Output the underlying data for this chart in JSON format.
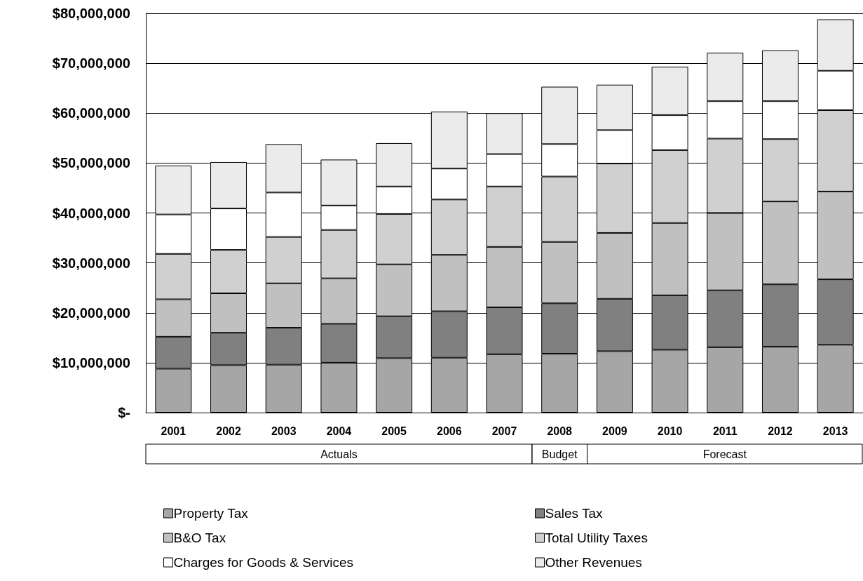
{
  "chart_data": {
    "type": "bar",
    "stacked": true,
    "categories": [
      "2001",
      "2002",
      "2003",
      "2004",
      "2005",
      "2006",
      "2007",
      "2008",
      "2009",
      "2010",
      "2011",
      "2012",
      "2013"
    ],
    "series": [
      {
        "name": "Property Tax",
        "color": "#a6a6a6",
        "values": [
          8800000,
          9500000,
          9600000,
          10000000,
          10900000,
          11000000,
          11700000,
          11800000,
          12300000,
          12600000,
          13100000,
          13200000,
          13600000
        ]
      },
      {
        "name": "Sales Tax",
        "color": "#808080",
        "values": [
          6400000,
          6500000,
          7400000,
          7800000,
          8400000,
          9300000,
          9400000,
          10100000,
          10500000,
          10900000,
          11400000,
          12500000,
          13100000
        ]
      },
      {
        "name": "B&O Tax",
        "color": "#c0c0c0",
        "values": [
          7500000,
          7900000,
          8900000,
          9100000,
          10400000,
          11300000,
          12100000,
          12300000,
          13200000,
          14500000,
          15500000,
          16600000,
          17600000
        ]
      },
      {
        "name": "Total Utility Taxes",
        "color": "#d0d0d0",
        "values": [
          9100000,
          8700000,
          9300000,
          9700000,
          10100000,
          11100000,
          12100000,
          13100000,
          13900000,
          14600000,
          14900000,
          12500000,
          16300000
        ]
      },
      {
        "name": "Charges for Goods & Services",
        "color": "#ffffff",
        "values": [
          7900000,
          8300000,
          8900000,
          4900000,
          5500000,
          6200000,
          6500000,
          6500000,
          6700000,
          7000000,
          7500000,
          7600000,
          7900000
        ]
      },
      {
        "name": "Other Revenues",
        "color": "#ebebeb",
        "values": [
          9800000,
          9300000,
          9700000,
          9200000,
          8700000,
          11400000,
          8200000,
          11500000,
          9100000,
          9700000,
          9700000,
          10200000,
          10300000
        ]
      }
    ],
    "ylim": [
      0,
      80000000
    ],
    "yticks": [
      {
        "value": 0,
        "label": "$-"
      },
      {
        "value": 10000000,
        "label": "$10,000,000"
      },
      {
        "value": 20000000,
        "label": "$20,000,000"
      },
      {
        "value": 30000000,
        "label": "$30,000,000"
      },
      {
        "value": 40000000,
        "label": "$40,000,000"
      },
      {
        "value": 50000000,
        "label": "$50,000,000"
      },
      {
        "value": 60000000,
        "label": "$60,000,000"
      },
      {
        "value": 70000000,
        "label": "$70,000,000"
      },
      {
        "value": 80000000,
        "label": "$80,000,000"
      }
    ],
    "grid": "y",
    "legend": "bottom",
    "annotations": [
      "Actuals",
      "Budget",
      "Forecast"
    ]
  }
}
